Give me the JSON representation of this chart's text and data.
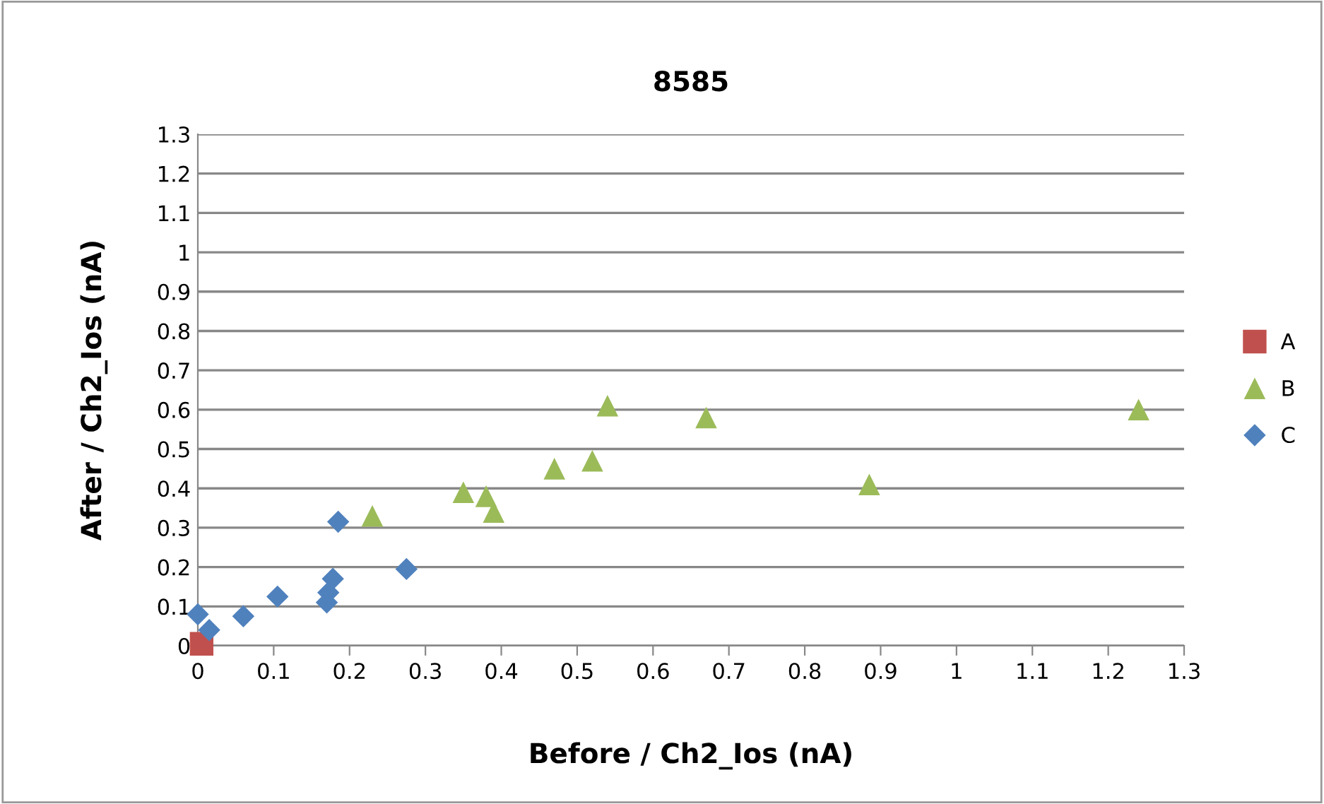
{
  "chart_data": {
    "type": "scatter",
    "title": "8585",
    "xlabel": "Before / Ch2_Ios (nA)",
    "ylabel": "After / Ch2_Ios (nA)",
    "xlim": [
      0,
      1.3
    ],
    "xticks": [
      0,
      0.1,
      0.2,
      0.3,
      0.4,
      0.5,
      0.6,
      0.7,
      0.8,
      0.9,
      1,
      1.1,
      1.2,
      1.3
    ],
    "ylim": [
      0,
      1.3
    ],
    "yticks": [
      0,
      0.1,
      0.2,
      0.3,
      0.4,
      0.5,
      0.6,
      0.7,
      0.8,
      0.9,
      1,
      1.1,
      1.2,
      1.3
    ],
    "grid": "y",
    "legend": "right",
    "series": [
      {
        "name": "A",
        "color": "#c0504d",
        "marker": "square",
        "x": [
          0.005
        ],
        "values": [
          0.005
        ]
      },
      {
        "name": "B",
        "color": "#9bbb59",
        "marker": "triangle",
        "x": [
          0.23,
          0.35,
          0.38,
          0.39,
          0.47,
          0.52,
          0.54,
          0.67,
          0.885,
          1.24
        ],
        "values": [
          0.33,
          0.39,
          0.38,
          0.34,
          0.45,
          0.47,
          0.61,
          0.58,
          0.41,
          0.6
        ]
      },
      {
        "name": "C",
        "color": "#4f81bd",
        "marker": "diamond",
        "x": [
          0,
          0.015,
          0.06,
          0.105,
          0.17,
          0.172,
          0.178,
          0.185,
          0.275
        ],
        "values": [
          0.08,
          0.04,
          0.075,
          0.125,
          0.11,
          0.135,
          0.17,
          0.315,
          0.195
        ]
      }
    ]
  }
}
